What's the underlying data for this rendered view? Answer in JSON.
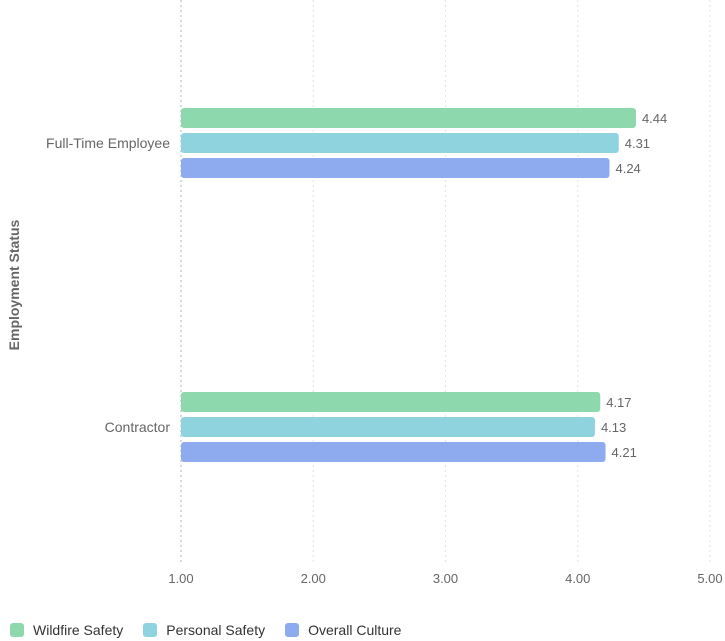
{
  "chart_data": {
    "type": "bar",
    "orientation": "horizontal",
    "categories": [
      "Full-Time Employee",
      "Contractor"
    ],
    "series": [
      {
        "name": "Wildfire Safety",
        "color": "#8dd8ac",
        "values": [
          4.44,
          4.17
        ]
      },
      {
        "name": "Personal Safety",
        "color": "#8fd3df",
        "values": [
          4.31,
          4.13
        ]
      },
      {
        "name": "Overall Culture",
        "color": "#8fabf0",
        "values": [
          4.24,
          4.21
        ]
      }
    ],
    "xlim": [
      1.0,
      5.0
    ],
    "xticks": [
      1,
      2,
      3,
      4,
      5
    ],
    "xtick_labels": [
      "1.00",
      "2.00",
      "3.00",
      "4.00",
      "5.00"
    ],
    "xlabel": "",
    "ylabel": "Employment Status",
    "value_labels": [
      [
        "4.44",
        "4.17"
      ],
      [
        "4.31",
        "4.13"
      ],
      [
        "4.24",
        "4.21"
      ]
    ],
    "grid": "vertical dotted",
    "legend": "bottom-left"
  }
}
